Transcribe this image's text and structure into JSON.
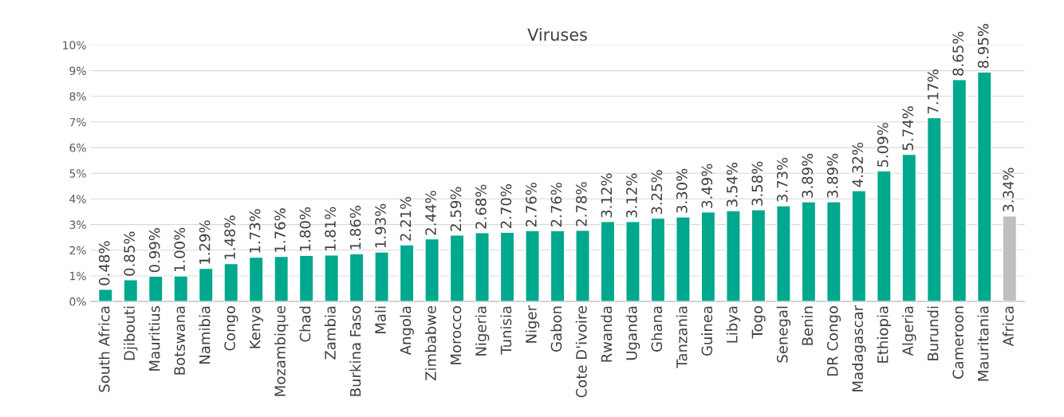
{
  "chart_data": {
    "type": "bar",
    "title": "Viruses",
    "categories": [
      "South Africa",
      "Djibouti",
      "Mauritius",
      "Botswana",
      "Namibia",
      "Congo",
      "Kenya",
      "Mozambique",
      "Chad",
      "Zambia",
      "Burkina Faso",
      "Mali",
      "Angola",
      "Zimbabwe",
      "Morocco",
      "Nigeria",
      "Tunisia",
      "Niger",
      "Gabon",
      "Cote D'ivoire",
      "Rwanda",
      "Uganda",
      "Ghana",
      "Tanzania",
      "Guinea",
      "Libya",
      "Togo",
      "Senegal",
      "Benin",
      "DR Congo",
      "Madagascar",
      "Ethiopia",
      "Algeria",
      "Burundi",
      "Cameroon",
      "Mauritania",
      "Africa"
    ],
    "values": [
      0.48,
      0.85,
      0.99,
      1.0,
      1.29,
      1.48,
      1.73,
      1.76,
      1.8,
      1.81,
      1.86,
      1.93,
      2.21,
      2.44,
      2.59,
      2.68,
      2.7,
      2.76,
      2.76,
      2.78,
      3.12,
      3.12,
      3.25,
      3.3,
      3.49,
      3.54,
      3.58,
      3.73,
      3.89,
      3.89,
      4.32,
      5.09,
      5.74,
      7.17,
      8.65,
      8.95,
      3.34
    ],
    "value_labels": [
      "0.48%",
      "0.85%",
      "0.99%",
      "1.00%",
      "1.29%",
      "1.48%",
      "1.73%",
      "1.76%",
      "1.80%",
      "1.81%",
      "1.86%",
      "1.93%",
      "2.21%",
      "2.44%",
      "2.59%",
      "2.68%",
      "2.70%",
      "2.76%",
      "2.76%",
      "2.78%",
      "3.12%",
      "3.12%",
      "3.25%",
      "3.30%",
      "3.49%",
      "3.54%",
      "3.58%",
      "3.73%",
      "3.89%",
      "3.89%",
      "4.32%",
      "5.09%",
      "5.74%",
      "7.17%",
      "8.65%",
      "8.95%",
      "3.34%"
    ],
    "colors": [
      "#00a88e",
      "#00a88e",
      "#00a88e",
      "#00a88e",
      "#00a88e",
      "#00a88e",
      "#00a88e",
      "#00a88e",
      "#00a88e",
      "#00a88e",
      "#00a88e",
      "#00a88e",
      "#00a88e",
      "#00a88e",
      "#00a88e",
      "#00a88e",
      "#00a88e",
      "#00a88e",
      "#00a88e",
      "#00a88e",
      "#00a88e",
      "#00a88e",
      "#00a88e",
      "#00a88e",
      "#00a88e",
      "#00a88e",
      "#00a88e",
      "#00a88e",
      "#00a88e",
      "#00a88e",
      "#00a88e",
      "#00a88e",
      "#00a88e",
      "#00a88e",
      "#00a88e",
      "#00a88e",
      "#bfbfbf"
    ],
    "ylim": [
      0,
      10
    ],
    "yticks": [
      {
        "value": 0,
        "label": "0%"
      },
      {
        "value": 1,
        "label": "1%"
      },
      {
        "value": 2,
        "label": "2%"
      },
      {
        "value": 3,
        "label": "3%"
      },
      {
        "value": 4,
        "label": "4%"
      },
      {
        "value": 5,
        "label": "5%"
      },
      {
        "value": 6,
        "label": "6%"
      },
      {
        "value": 7,
        "label": "7%"
      },
      {
        "value": 8,
        "label": "8%"
      },
      {
        "value": 9,
        "label": "9%"
      },
      {
        "value": 10,
        "label": "10%"
      }
    ],
    "grid": "y"
  }
}
